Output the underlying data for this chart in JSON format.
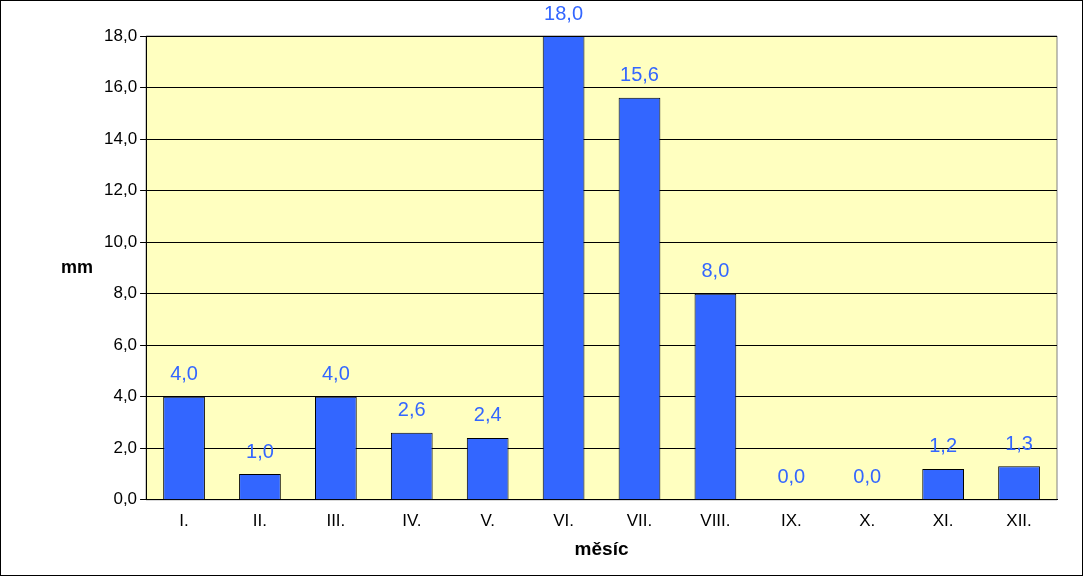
{
  "chart_data": {
    "type": "bar",
    "xlabel": "měsíc",
    "ylabel": "mm",
    "categories": [
      "I.",
      "II.",
      "III.",
      "IV.",
      "V.",
      "VI.",
      "VII.",
      "VIII.",
      "IX.",
      "X.",
      "XI.",
      "XII."
    ],
    "values": [
      4.0,
      1.0,
      4.0,
      2.6,
      2.4,
      18.0,
      15.6,
      8.0,
      0.0,
      0.0,
      1.2,
      1.3
    ],
    "value_labels": [
      "4,0",
      "1,0",
      "4,0",
      "2,6",
      "2,4",
      "18,0",
      "15,6",
      "8,0",
      "0,0",
      "0,0",
      "1,2",
      "1,3"
    ],
    "color": "#3366ff",
    "ylim": [
      0,
      18
    ],
    "yticks": [
      {
        "value": 0,
        "label": "0,0"
      },
      {
        "value": 2,
        "label": "2,0"
      },
      {
        "value": 4,
        "label": "4,0"
      },
      {
        "value": 6,
        "label": "6,0"
      },
      {
        "value": 8,
        "label": "8,0"
      },
      {
        "value": 10,
        "label": "10,0"
      },
      {
        "value": 12,
        "label": "12,0"
      },
      {
        "value": 14,
        "label": "14,0"
      },
      {
        "value": 16,
        "label": "16,0"
      },
      {
        "value": 18,
        "label": "18,0"
      }
    ],
    "grid": "y",
    "legend": false
  }
}
